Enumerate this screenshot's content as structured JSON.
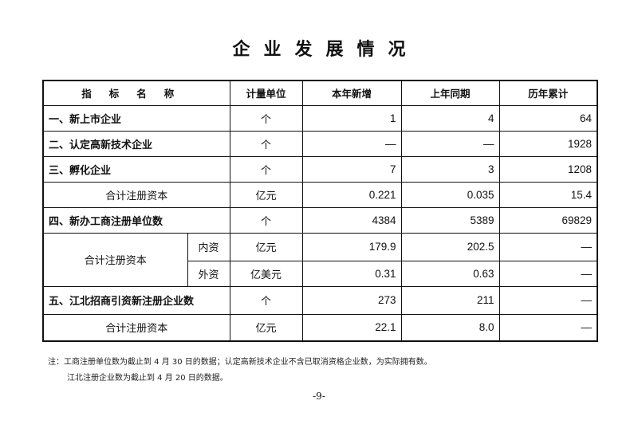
{
  "title": "企业发展情况",
  "headers": [
    "指标名称",
    "计量单位",
    "本年新增",
    "上年同期",
    "历年累计"
  ],
  "rows": [
    {
      "name": "一、新上市企业",
      "unit": "个",
      "new": "1",
      "prev": "4",
      "total": "64"
    },
    {
      "name": "二、认定高新技术企业",
      "unit": "个",
      "new": "—",
      "prev": "—",
      "total": "1928"
    },
    {
      "name": "三、孵化企业",
      "unit": "个",
      "new": "7",
      "prev": "3",
      "total": "1208"
    },
    {
      "name": "合计注册资本",
      "unit": "亿元",
      "new": "0.221",
      "prev": "0.035",
      "total": "15.4"
    },
    {
      "name": "四、新办工商注册单位数",
      "unit": "个",
      "new": "4384",
      "prev": "5389",
      "total": "69829"
    },
    {
      "name": "合计注册资本",
      "sub": "内资",
      "unit": "亿元",
      "new": "179.9",
      "prev": "202.5",
      "total": "—"
    },
    {
      "sub": "外资",
      "unit": "亿美元",
      "new": "0.31",
      "prev": "0.63",
      "total": "—"
    },
    {
      "name": "五、江北招商引资新注册企业数",
      "unit": "个",
      "new": "273",
      "prev": "211",
      "total": "—"
    },
    {
      "name": "合计注册资本",
      "unit": "亿元",
      "new": "22.1",
      "prev": "8.0",
      "total": "—"
    }
  ],
  "notes": [
    "注：工商注册单位数为截止到 4 月 30 日的数据；认定高新技术企业不含已取消资格企业数，为实际拥有数。",
    "江北注册企业数为截止到 4 月 20 日的数据。"
  ],
  "page_number": "-9-"
}
